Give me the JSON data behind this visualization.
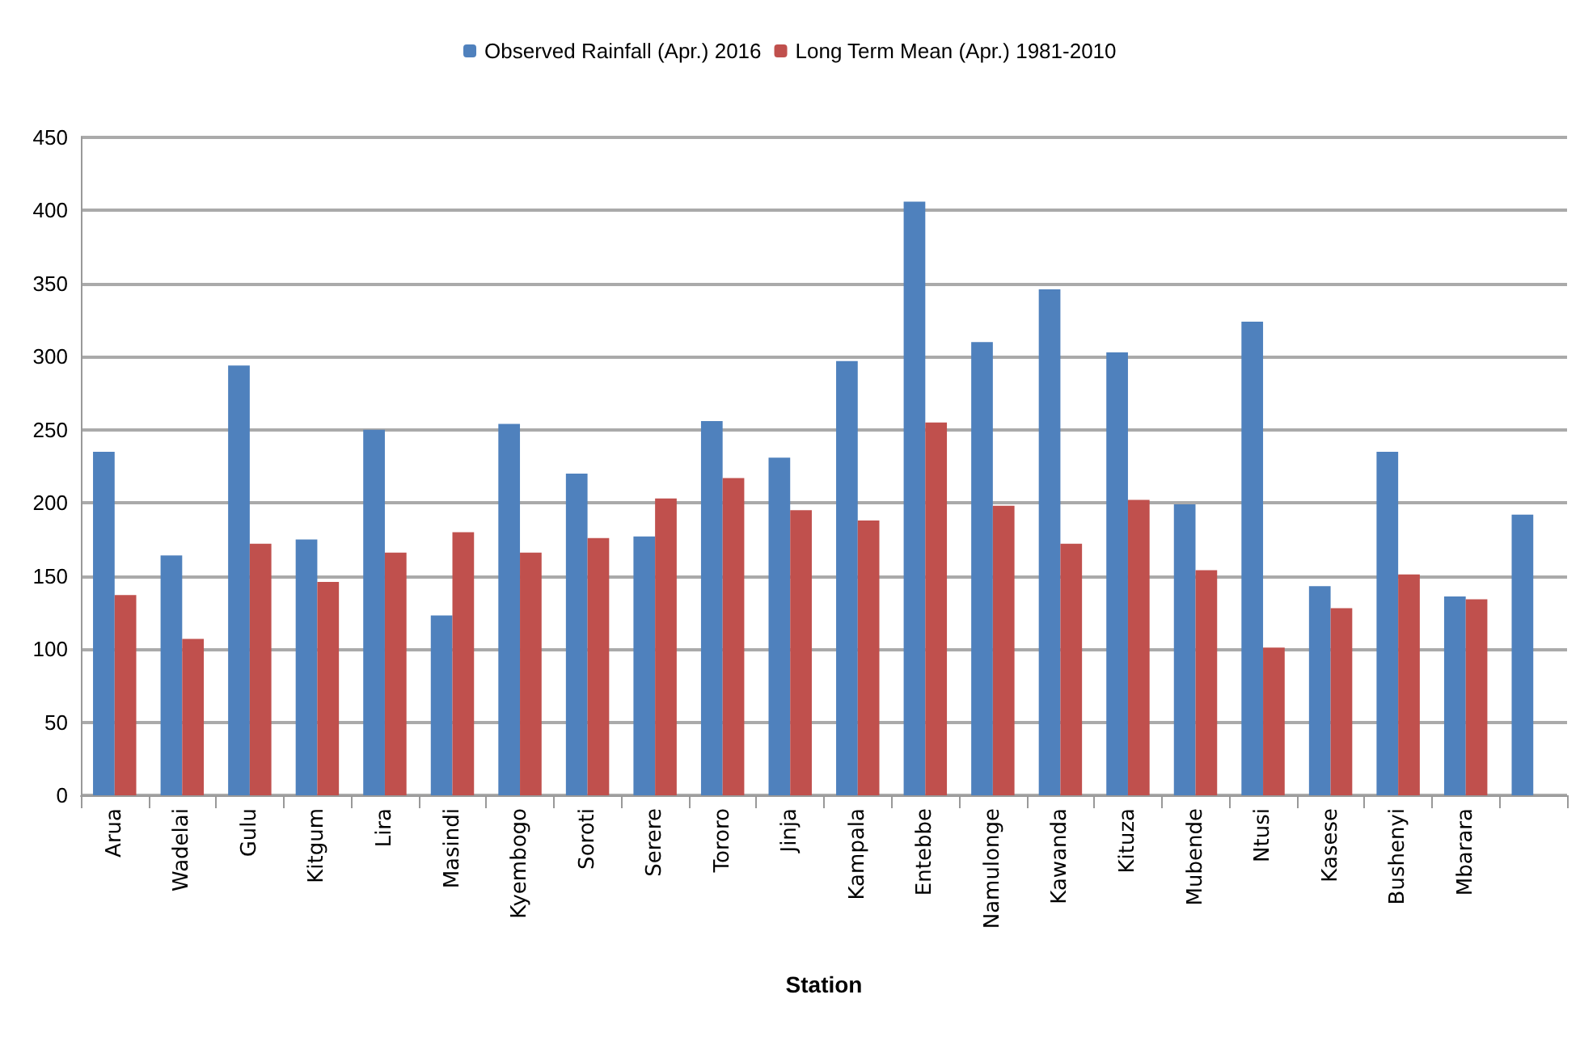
{
  "chart_data": {
    "type": "bar",
    "xlabel": "Station",
    "categories": [
      "Arua",
      "Wadelai",
      "Gulu",
      "Kitgum",
      "Lira",
      "Masindi",
      "Kyembogo",
      "Soroti",
      "Serere",
      "Tororo",
      "Jinja",
      "Kampala",
      "Entebbe",
      "Namulonge",
      "Kawanda",
      "Kituza",
      "Mubende",
      "Ntusi",
      "Kasese",
      "Bushenyi",
      "Mbarara",
      null
    ],
    "series": [
      {
        "name": "Observed Rainfall (Apr.) 2016",
        "color": "#4f81bd",
        "values": [
          235,
          164,
          294,
          175,
          250,
          123,
          254,
          220,
          177,
          256,
          231,
          297,
          406,
          310,
          346,
          303,
          199,
          324,
          143,
          235,
          136,
          192
        ]
      },
      {
        "name": "Long Term Mean (Apr.) 1981-2010",
        "color": "#c0504d",
        "values": [
          137,
          107,
          172,
          146,
          166,
          180,
          166,
          176,
          203,
          217,
          195,
          188,
          255,
          198,
          172,
          202,
          154,
          101,
          128,
          151,
          134,
          null
        ]
      }
    ],
    "ylim": [
      0,
      450
    ],
    "yticks": [
      0,
      50,
      100,
      150,
      200,
      250,
      300,
      350,
      400,
      450
    ],
    "grid": "y",
    "legend": "top"
  }
}
